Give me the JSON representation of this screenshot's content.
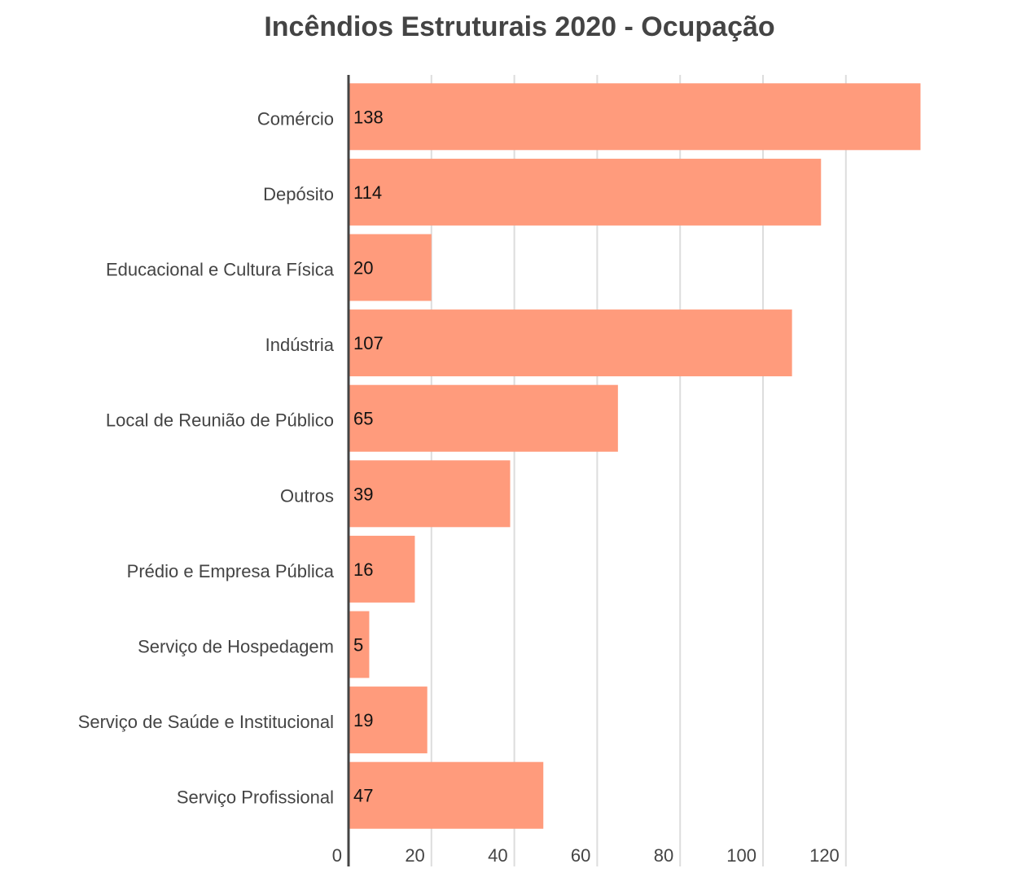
{
  "chart_data": {
    "type": "bar",
    "orientation": "horizontal",
    "title": "Incêndios Estruturais 2020 - Ocupação",
    "xlabel": "",
    "ylabel": "",
    "categories": [
      "Comércio",
      "Depósito",
      "Educacional e Cultura Física",
      "Indústria",
      "Local de Reunião de Público",
      "Outros",
      "Prédio e Empresa Pública",
      "Serviço de Hospedagem",
      "Serviço de Saúde e Institucional",
      "Serviço Profissional"
    ],
    "values": [
      138,
      114,
      20,
      107,
      65,
      39,
      16,
      5,
      19,
      47
    ],
    "value_labels": [
      "138",
      "114",
      "20",
      "107",
      "65",
      "39",
      "16",
      "5",
      "19",
      "47"
    ],
    "xticks": [
      "0",
      "20",
      "40",
      "60",
      "80",
      "100",
      "120"
    ],
    "xlim": [
      0,
      140
    ],
    "grid": "vertical",
    "legend": "none",
    "bar_color": "#FF9B7C",
    "grid_color": "#DDDDDD",
    "axis_color": "#444444"
  }
}
